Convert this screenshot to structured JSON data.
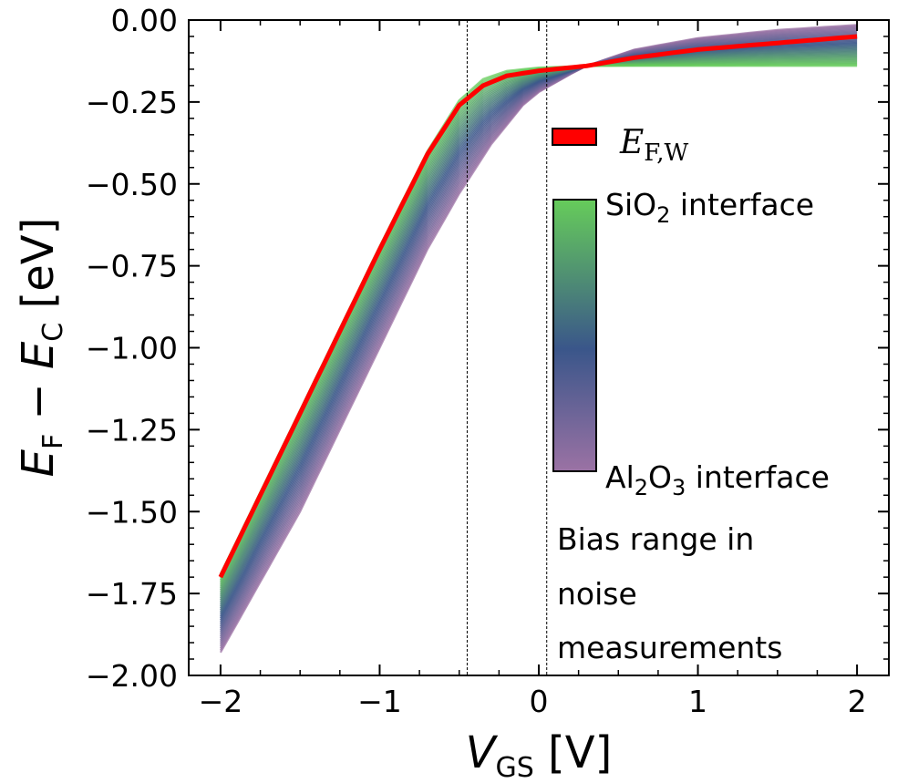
{
  "chart_data": {
    "type": "line",
    "xlabel": {
      "main": "V",
      "sub": "GS",
      "unit": " [V]"
    },
    "ylabel": {
      "e1": "E",
      "sub1": "F",
      "minus": " − ",
      "e2": "E",
      "sub2": "C",
      "unit": " [eV]"
    },
    "xlim": [
      -2.2,
      2.2
    ],
    "ylim": [
      -2.0,
      0.0
    ],
    "xticks": [
      -2,
      -1,
      0,
      1,
      2
    ],
    "xtick_labels": [
      "−2",
      "−1",
      "0",
      "1",
      "2"
    ],
    "yticks": [
      0.0,
      -0.25,
      -0.5,
      -0.75,
      -1.0,
      -1.25,
      -1.5,
      -1.75,
      -2.0
    ],
    "ytick_labels": [
      "0.00",
      "−0.25",
      "−0.50",
      "−0.75",
      "−1.00",
      "−1.25",
      "−1.50",
      "−1.75",
      "−2.00"
    ],
    "vlines": [
      -0.45,
      0.05
    ],
    "band": {
      "count": 40,
      "color_top": "#66cc5a",
      "color_mid": "#3a568a",
      "color_bottom": "#9b72a4",
      "top_curve": {
        "x": [
          -2.0,
          -1.5,
          -1.0,
          -0.7,
          -0.5,
          -0.35,
          -0.2,
          0.0,
          0.3,
          0.6,
          1.0,
          1.5,
          2.0
        ],
        "y": [
          -1.69,
          -1.19,
          -0.69,
          -0.4,
          -0.245,
          -0.18,
          -0.155,
          -0.145,
          -0.14,
          -0.14,
          -0.14,
          -0.14,
          -0.14
        ]
      },
      "bottom_curve": {
        "x": [
          -2.0,
          -1.5,
          -1.0,
          -0.7,
          -0.5,
          -0.3,
          -0.1,
          0.0,
          0.2,
          0.3,
          0.6,
          1.0,
          1.5,
          2.0
        ],
        "y": [
          -1.93,
          -1.5,
          -1.0,
          -0.7,
          -0.53,
          -0.38,
          -0.26,
          -0.22,
          -0.165,
          -0.14,
          -0.09,
          -0.055,
          -0.03,
          -0.015
        ]
      }
    },
    "series": [
      {
        "name": "E_F,W",
        "color": "#ff0000",
        "x": [
          -2.0,
          -1.5,
          -1.0,
          -0.7,
          -0.5,
          -0.35,
          -0.2,
          0.0,
          0.3,
          0.6,
          1.0,
          1.5,
          2.0
        ],
        "y": [
          -1.7,
          -1.2,
          -0.7,
          -0.41,
          -0.26,
          -0.2,
          -0.17,
          -0.155,
          -0.14,
          -0.115,
          -0.09,
          -0.07,
          -0.05
        ]
      }
    ],
    "legend": {
      "efw": {
        "main": "E",
        "sub": "F,W"
      },
      "top_label": {
        "pre": "SiO",
        "sub": "2",
        "post": " interface"
      },
      "bottom_label": {
        "pre1": "Al",
        "sub1": "2",
        "mid": "O",
        "sub2": "3",
        "post": " interface"
      }
    },
    "annotation": [
      "Bias range in",
      "noise",
      "measurements"
    ]
  }
}
